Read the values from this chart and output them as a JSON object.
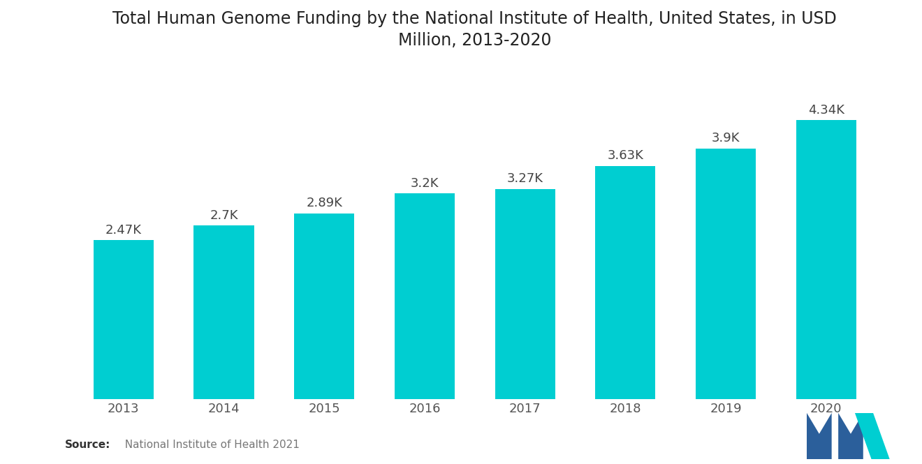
{
  "title": "Total Human Genome Funding by the National Institute of Health, United States, in USD\nMillion, 2013-2020",
  "years": [
    "2013",
    "2014",
    "2015",
    "2016",
    "2017",
    "2018",
    "2019",
    "2020"
  ],
  "values": [
    2470,
    2700,
    2890,
    3200,
    3270,
    3630,
    3900,
    4340
  ],
  "labels": [
    "2.47K",
    "2.7K",
    "2.89K",
    "3.2K",
    "3.27K",
    "3.63K",
    "3.9K",
    "4.34K"
  ],
  "bar_color": "#00CED1",
  "background_color": "#ffffff",
  "title_fontsize": 17,
  "label_fontsize": 13,
  "tick_fontsize": 13,
  "source_bold": "Source:",
  "source_normal": "  National Institute of Health 2021",
  "ylim": [
    0,
    5200
  ],
  "logo_blue": "#2B5F9B",
  "logo_teal": "#00CED1"
}
